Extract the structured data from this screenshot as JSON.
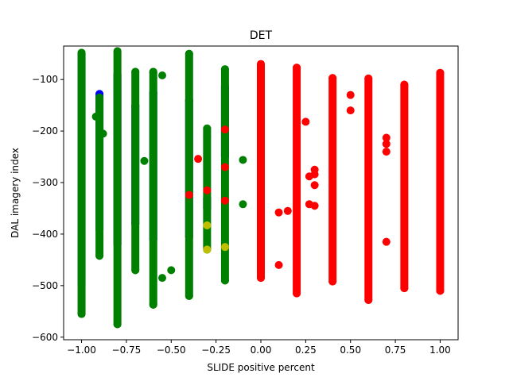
{
  "chart_data": {
    "type": "scatter",
    "title": "DET",
    "xlabel": "SLIDE positive percent",
    "ylabel": "DAL imagery index",
    "xlim": [
      -1.1,
      1.1
    ],
    "ylim": [
      -605,
      -35
    ],
    "xticks": [
      -1.0,
      -0.75,
      -0.5,
      -0.25,
      0.0,
      0.25,
      0.5,
      0.75,
      1.0
    ],
    "xtick_labels": [
      "−1.00",
      "−0.75",
      "−0.50",
      "−0.25",
      "0.00",
      "0.25",
      "0.50",
      "0.75",
      "1.00"
    ],
    "yticks": [
      -600,
      -500,
      -400,
      -300,
      -200,
      -100
    ],
    "ytick_labels": [
      "−600",
      "−500",
      "−400",
      "−300",
      "−200",
      "−100"
    ],
    "grid": false,
    "legend": false,
    "colors": {
      "blue": "#0000ff",
      "green": "#008000",
      "red": "#ff0000",
      "yellow": "#bfbf00"
    },
    "marker_radius": 5,
    "series": [
      {
        "color": "blue",
        "columns": [
          {
            "x": -1.0,
            "y_min": -498,
            "y_max": -50
          },
          {
            "x": -0.9,
            "y_min": -390,
            "y_max": -128
          },
          {
            "x": -0.8,
            "y_min": -420,
            "y_max": -90
          },
          {
            "x": -0.7,
            "y_min": -380,
            "y_max": -150
          },
          {
            "x": -0.6,
            "y_min": -410,
            "y_max": -125
          },
          {
            "x": -0.4,
            "y_min": -405,
            "y_max": -140
          },
          {
            "x": -0.3,
            "y_min": -350,
            "y_max": -330
          },
          {
            "x": -0.2,
            "y_min": -250,
            "y_max": -113
          }
        ]
      },
      {
        "color": "green",
        "columns": [
          {
            "x": -1.0,
            "y_min": -555,
            "y_max": -48
          },
          {
            "x": -0.9,
            "y_min": -442,
            "y_max": -135
          },
          {
            "x": -0.8,
            "y_min": -575,
            "y_max": -45
          },
          {
            "x": -0.7,
            "y_min": -470,
            "y_max": -85
          },
          {
            "x": -0.6,
            "y_min": -537,
            "y_max": -85
          },
          {
            "x": -0.4,
            "y_min": -520,
            "y_max": -50
          },
          {
            "x": -0.3,
            "y_min": -430,
            "y_max": -195
          },
          {
            "x": -0.2,
            "y_min": -490,
            "y_max": -80
          }
        ],
        "extra_points": [
          {
            "x": -0.92,
            "y": -172
          },
          {
            "x": -0.88,
            "y": -205
          },
          {
            "x": -0.65,
            "y": -258
          },
          {
            "x": -0.55,
            "y": -485
          },
          {
            "x": -0.5,
            "y": -470
          },
          {
            "x": -0.3,
            "y": -195
          },
          {
            "x": -0.3,
            "y": -210
          },
          {
            "x": -0.1,
            "y": -256
          },
          {
            "x": -0.1,
            "y": -342
          },
          {
            "x": -0.6,
            "y": -87
          },
          {
            "x": -0.55,
            "y": -92
          }
        ]
      },
      {
        "color": "red",
        "columns": [
          {
            "x": 0.0,
            "y_min": -485,
            "y_max": -70
          },
          {
            "x": 0.2,
            "y_min": -515,
            "y_max": -77
          },
          {
            "x": 0.4,
            "y_min": -492,
            "y_max": -97
          },
          {
            "x": 0.6,
            "y_min": -528,
            "y_max": -98
          },
          {
            "x": 0.8,
            "y_min": -505,
            "y_max": -110
          },
          {
            "x": 1.0,
            "y_min": -510,
            "y_max": -87
          }
        ],
        "extra_points": [
          {
            "x": -0.35,
            "y": -254
          },
          {
            "x": -0.4,
            "y": -324
          },
          {
            "x": -0.3,
            "y": -315
          },
          {
            "x": -0.2,
            "y": -197
          },
          {
            "x": -0.2,
            "y": -270
          },
          {
            "x": -0.2,
            "y": -335
          },
          {
            "x": 0.1,
            "y": -358
          },
          {
            "x": 0.1,
            "y": -460
          },
          {
            "x": 0.15,
            "y": -355
          },
          {
            "x": 0.25,
            "y": -182
          },
          {
            "x": 0.27,
            "y": -288
          },
          {
            "x": 0.27,
            "y": -342
          },
          {
            "x": 0.3,
            "y": -275
          },
          {
            "x": 0.3,
            "y": -284
          },
          {
            "x": 0.3,
            "y": -345
          },
          {
            "x": 0.3,
            "y": -305
          },
          {
            "x": 0.5,
            "y": -130
          },
          {
            "x": 0.5,
            "y": -160
          },
          {
            "x": 0.7,
            "y": -213
          },
          {
            "x": 0.7,
            "y": -225
          },
          {
            "x": 0.7,
            "y": -240
          },
          {
            "x": 0.7,
            "y": -415
          }
        ]
      },
      {
        "color": "yellow",
        "columns": [],
        "extra_points": [
          {
            "x": -0.3,
            "y": -383
          },
          {
            "x": -0.3,
            "y": -430
          },
          {
            "x": -0.2,
            "y": -425
          }
        ]
      }
    ]
  }
}
